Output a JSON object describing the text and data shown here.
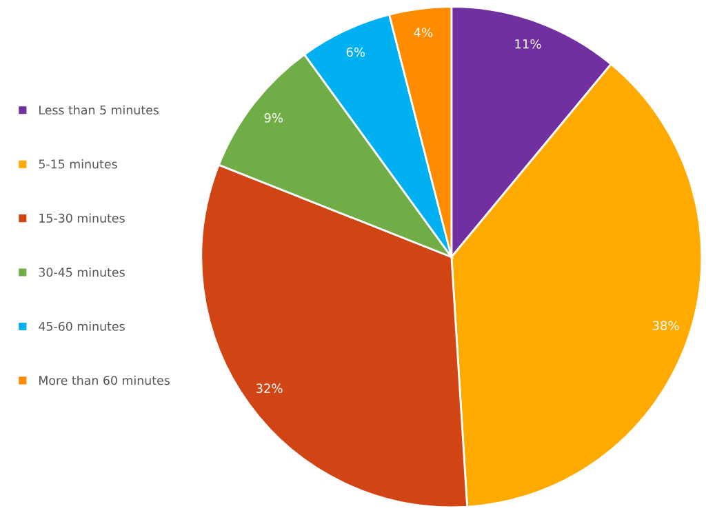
{
  "chart_data": {
    "type": "pie",
    "categories": [
      "Less than 5 minutes",
      "5-15 minutes",
      "15-30 minutes",
      "30-45 minutes",
      "45-60 minutes",
      "More than 60 minutes"
    ],
    "values": [
      11,
      38,
      32,
      9,
      6,
      4
    ],
    "colors": [
      "#7030a0",
      "#ffaa00",
      "#d04513",
      "#70ad47",
      "#00b0f0",
      "#ff8c00"
    ],
    "value_labels": [
      "11%",
      "38%",
      "32%",
      "9%",
      "6%",
      "4%"
    ],
    "legend": "left"
  }
}
